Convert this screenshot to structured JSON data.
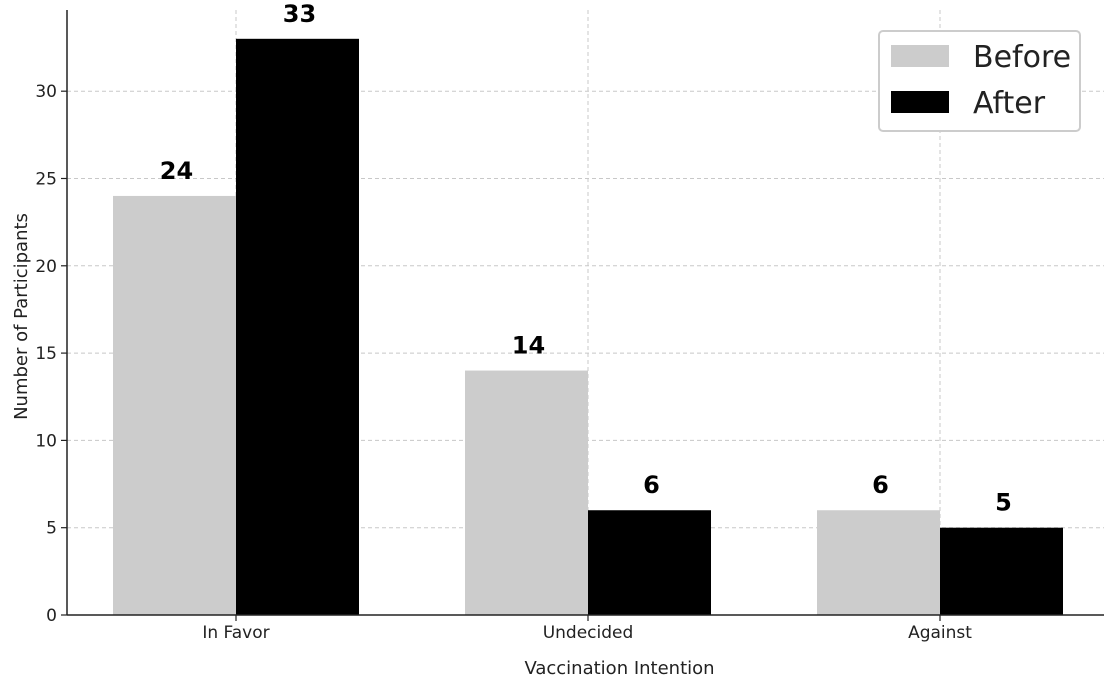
{
  "chart_data": {
    "type": "bar",
    "xlabel": "Vaccination Intention",
    "ylabel": "Number of Participants",
    "categories": [
      "In Favor",
      "Undecided",
      "Against"
    ],
    "series": [
      {
        "name": "Before",
        "values": [
          24,
          14,
          6
        ],
        "color": "#cccccc"
      },
      {
        "name": "After",
        "values": [
          33,
          6,
          5
        ],
        "color": "#000000"
      }
    ],
    "ylim": [
      0,
      34.65
    ],
    "yticks": [
      0,
      5,
      10,
      15,
      20,
      25,
      30
    ],
    "grid": true,
    "legend_position": "top-right"
  }
}
